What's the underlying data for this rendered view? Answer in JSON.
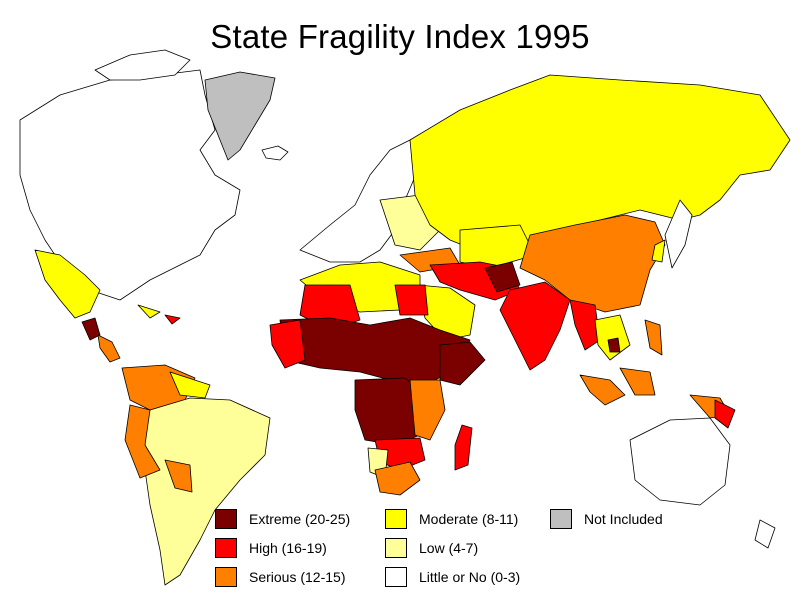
{
  "title": "State Fragility Index 1995",
  "legend": [
    {
      "label": "Extreme (20-25)",
      "color": "#7b0000"
    },
    {
      "label": "Moderate (8-11)",
      "color": "#ffff00"
    },
    {
      "label": "Not Included",
      "color": "#bfbfbf"
    },
    {
      "label": "High (16-19)",
      "color": "#ff0000"
    },
    {
      "label": "Low (4-7)",
      "color": "#ffff99"
    },
    {
      "label": "Serious (12-15)",
      "color": "#ff7f00"
    },
    {
      "label": "Little or No (0-3)",
      "color": "#ffffff"
    }
  ]
}
